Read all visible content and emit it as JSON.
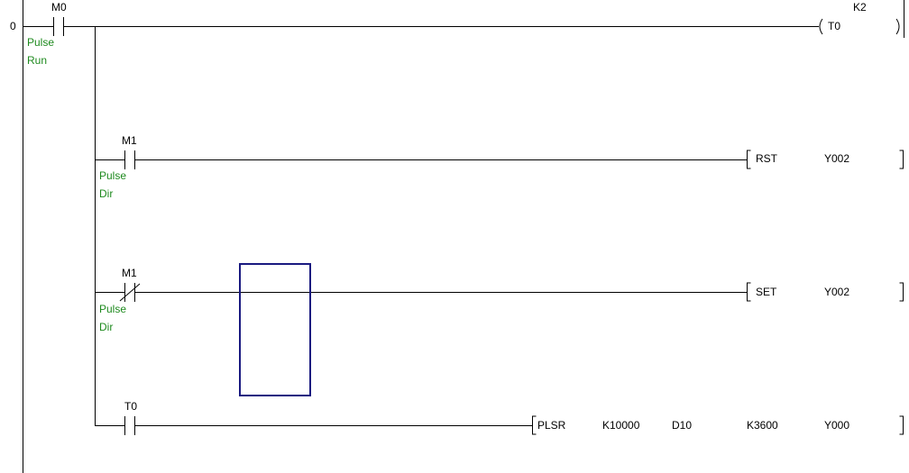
{
  "ladder": {
    "rung0": {
      "step": "0",
      "contact": {
        "device": "M0",
        "type": "NO",
        "comment": [
          "Pulse",
          "Run"
        ]
      },
      "coil": {
        "device": "T0",
        "setting": "K2"
      }
    },
    "branch1": {
      "contact": {
        "device": "M1",
        "type": "NO",
        "comment": [
          "Pulse",
          "Dir"
        ]
      },
      "instruction": {
        "op": "RST",
        "operands": [
          "Y002"
        ]
      }
    },
    "branch2": {
      "contact": {
        "device": "M1",
        "type": "NC",
        "comment": [
          "Pulse",
          "Dir"
        ]
      },
      "instruction": {
        "op": "SET",
        "operands": [
          "Y002"
        ]
      }
    },
    "branch3": {
      "contact": {
        "device": "T0",
        "type": "NO"
      },
      "instruction": {
        "op": "PLSR",
        "operands": [
          "K10000",
          "D10",
          "K3600",
          "Y000"
        ]
      }
    }
  },
  "colors": {
    "comment": "#1e8a1e",
    "cursor": "#1a1a80"
  }
}
